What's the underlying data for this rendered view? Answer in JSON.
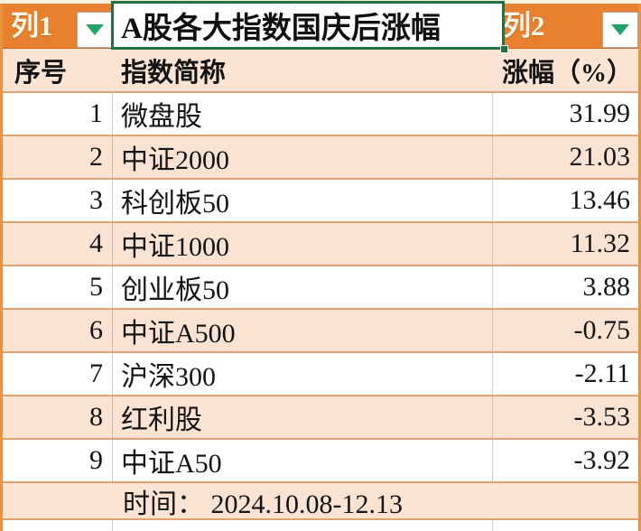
{
  "filter_bar": {
    "col1_label": "列1",
    "col2_label": "列2",
    "title": "A股各大指数国庆后涨幅"
  },
  "table": {
    "headers": {
      "index_no": "序号",
      "index_name": "指数简称",
      "change_pct": "涨幅（%）"
    },
    "rows": [
      {
        "no": "1",
        "name": "微盘股",
        "change": "31.99"
      },
      {
        "no": "2",
        "name": "中证2000",
        "change": "21.03"
      },
      {
        "no": "3",
        "name": "科创板50",
        "change": "13.46"
      },
      {
        "no": "4",
        "name": "中证1000",
        "change": "11.32"
      },
      {
        "no": "5",
        "name": "创业板50",
        "change": "3.88"
      },
      {
        "no": "6",
        "name": "中证A500",
        "change": "-0.75"
      },
      {
        "no": "7",
        "name": "沪深300",
        "change": "-2.11"
      },
      {
        "no": "8",
        "name": "红利股",
        "change": "-3.53"
      },
      {
        "no": "9",
        "name": "中证A50",
        "change": "-3.92"
      }
    ],
    "footer_text": "时间： 2024.10.08-12.13"
  },
  "colors": {
    "header_orange": "#E8802F",
    "band_peach": "#FBE3D3",
    "row_border_tan": "#E2A36E",
    "selection_border_green": "#1F7244",
    "dropdown_arrow_green": "#21A366"
  }
}
